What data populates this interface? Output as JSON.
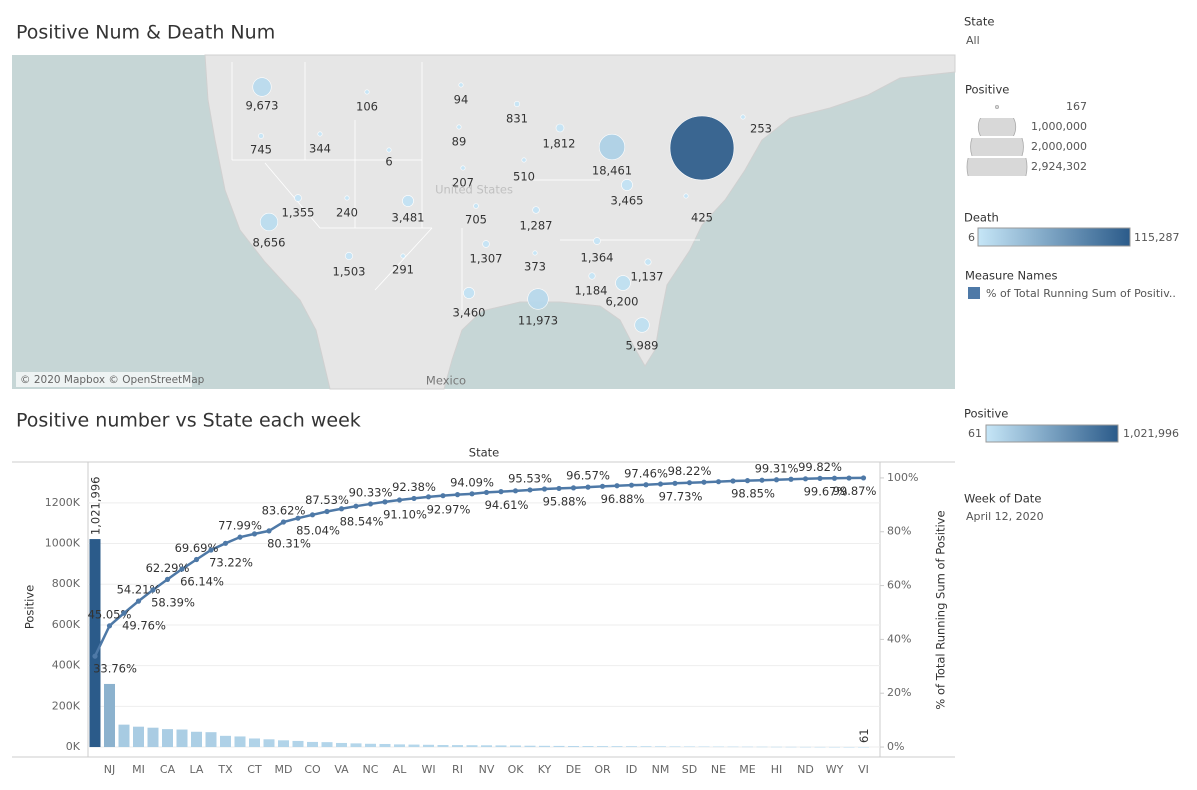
{
  "chart_data": [
    {
      "type": "bubble-map",
      "title": "Positive Num & Death Num",
      "attribution": "© 2020 Mapbox © OpenStreetMap",
      "places": [
        "United States",
        "Mexico"
      ],
      "values": [
        9673,
        106,
        94,
        831,
        745,
        344,
        1812,
        6,
        89,
        18461,
        253,
        207,
        510,
        3465,
        1355,
        240,
        3481,
        705,
        1287,
        425,
        8656,
        1503,
        291,
        1307,
        373,
        1364,
        1137,
        1184,
        6200,
        3460,
        11973,
        5989,
        115287
      ],
      "value_labels": [
        "9,673",
        "106",
        "94",
        "831",
        "745",
        "344",
        "1,812",
        "6",
        "89",
        "18,461",
        "253",
        "207",
        "510",
        "3,465",
        "1,355",
        "240",
        "3,481",
        "705",
        "1,287",
        "425",
        "8,656",
        "1,503",
        "291",
        "1,307",
        "373",
        "1,364",
        "1,137",
        "1,184",
        "6,200",
        "3,460",
        "11,973",
        "5,989",
        null
      ]
    },
    {
      "type": "bar",
      "title": "Positive number vs State each week",
      "x_label": "State",
      "y_label": "Positive",
      "y2_label": "% of Total Running Sum of Positive",
      "categories": [
        null,
        "NJ",
        null,
        "MI",
        null,
        "CA",
        null,
        "LA",
        null,
        "TX",
        null,
        "CT",
        null,
        "MD",
        null,
        "CO",
        null,
        "VA",
        null,
        "NC",
        null,
        "AL",
        null,
        "WI",
        null,
        "RI",
        null,
        "NV",
        null,
        "OK",
        null,
        "KY",
        null,
        "DE",
        null,
        "OR",
        null,
        "ID",
        null,
        "NM",
        null,
        "SD",
        null,
        "NE",
        null,
        "ME",
        null,
        "HI",
        null,
        "ND",
        null,
        "WY",
        null,
        "VI"
      ],
      "series": [
        {
          "name": "Positive",
          "values": [
            1021996,
            310000,
            110000,
            100000,
            95000,
            88000,
            86000,
            75000,
            73000,
            55000,
            52000,
            42000,
            38000,
            33000,
            30000,
            25000,
            24000,
            20000,
            18000,
            16000,
            15000,
            13000,
            12000,
            11000,
            10000,
            9500,
            9000,
            8500,
            8000,
            7500,
            6500,
            6000,
            5500,
            5000,
            4800,
            4500,
            4200,
            4000,
            3800,
            3500,
            3000,
            2800,
            2500,
            2200,
            2000,
            1800,
            1500,
            1200,
            1000,
            800,
            600,
            400,
            300,
            61
          ],
          "value_labels": [
            "1,021,996",
            null,
            null,
            null,
            null,
            null,
            null,
            null,
            null,
            null,
            null,
            null,
            null,
            null,
            null,
            null,
            null,
            null,
            null,
            null,
            null,
            null,
            null,
            null,
            null,
            null,
            null,
            null,
            null,
            null,
            null,
            null,
            null,
            null,
            null,
            null,
            null,
            null,
            null,
            null,
            null,
            null,
            null,
            null,
            null,
            null,
            null,
            null,
            null,
            null,
            null,
            null,
            null,
            "61"
          ]
        },
        {
          "name": "% of Total Running Sum of Positive",
          "type": "line",
          "axis": "y2",
          "color": "#4e79a7",
          "values": [
            33.76,
            45.05,
            49.76,
            54.21,
            58.39,
            62.29,
            66.14,
            69.69,
            73.22,
            75.7,
            77.99,
            79.2,
            80.31,
            83.62,
            85.04,
            86.3,
            87.53,
            88.54,
            89.5,
            90.33,
            91.1,
            91.8,
            92.38,
            92.97,
            93.4,
            93.8,
            94.09,
            94.61,
            94.9,
            95.2,
            95.53,
            95.88,
            96.1,
            96.3,
            96.57,
            96.88,
            97.1,
            97.3,
            97.46,
            97.73,
            98.0,
            98.22,
            98.4,
            98.6,
            98.85,
            99.0,
            99.15,
            99.31,
            99.5,
            99.67,
            99.82,
            99.87,
            99.95,
            100
          ],
          "value_labels": [
            "33.76%",
            "45.05%",
            "49.76%",
            "54.21%",
            "58.39%",
            "62.29%",
            "66.14%",
            "69.69%",
            "73.22%",
            null,
            "77.99%",
            null,
            "80.31%",
            "83.62%",
            "85.04%",
            null,
            "87.53%",
            "88.54%",
            null,
            "90.33%",
            "91.10%",
            null,
            "92.38%",
            "92.97%",
            null,
            null,
            "94.09%",
            "94.61%",
            null,
            null,
            "95.53%",
            "95.88%",
            null,
            null,
            "96.57%",
            "96.88%",
            null,
            null,
            "97.46%",
            "97.73%",
            null,
            "98.22%",
            null,
            null,
            "98.85%",
            null,
            null,
            "99.31%",
            null,
            "99.67%",
            "99.82%",
            "99.87%",
            null,
            null
          ]
        }
      ],
      "ylim": [
        -49000,
        1386000
      ],
      "yticks": [
        {
          "value": 0,
          "label": "0K"
        },
        {
          "value": 200000,
          "label": "200K"
        },
        {
          "value": 400000,
          "label": "400K"
        },
        {
          "value": 600000,
          "label": "600K"
        },
        {
          "value": 800000,
          "label": "800K"
        },
        {
          "value": 1000000,
          "label": "1000K"
        },
        {
          "value": 1200000,
          "label": "1200K"
        }
      ],
      "y2lim": [
        -3.7,
        104.8
      ],
      "y2ticks": [
        {
          "value": 0,
          "label": "0%"
        },
        {
          "value": 20,
          "label": "20%"
        },
        {
          "value": 40,
          "label": "40%"
        },
        {
          "value": 60,
          "label": "60%"
        },
        {
          "value": 80,
          "label": "80%"
        },
        {
          "value": 100,
          "label": "100%"
        }
      ],
      "grid": true
    }
  ],
  "filters": {
    "state": {
      "title": "State",
      "value": "All"
    },
    "week": {
      "title": "Week of Date",
      "value": "April 12, 2020"
    }
  },
  "legends": {
    "size": {
      "title": "Positive",
      "items": [
        167,
        {
          "value": 1000000,
          "label": "1,000,000"
        },
        {
          "value": 2000000,
          "label": "2,000,000"
        },
        {
          "value": 2924302,
          "label": "2,924,302"
        }
      ]
    },
    "death": {
      "title": "Death",
      "ticks": [
        6,
        {
          "value": 115287,
          "label": "115,287"
        }
      ],
      "color_range": [
        "#c6e6f7",
        "#2b5b8a"
      ]
    },
    "measure_names": {
      "title": "Measure Names",
      "item": "% of Total Running Sum of Positiv..",
      "color": "#4e79a7"
    },
    "positive": {
      "title": "Positive",
      "ticks": [
        61,
        {
          "value": 1021996,
          "label": "1,021,996"
        }
      ],
      "color_range": [
        "#c6e6f7",
        "#2b5b8a"
      ]
    }
  }
}
